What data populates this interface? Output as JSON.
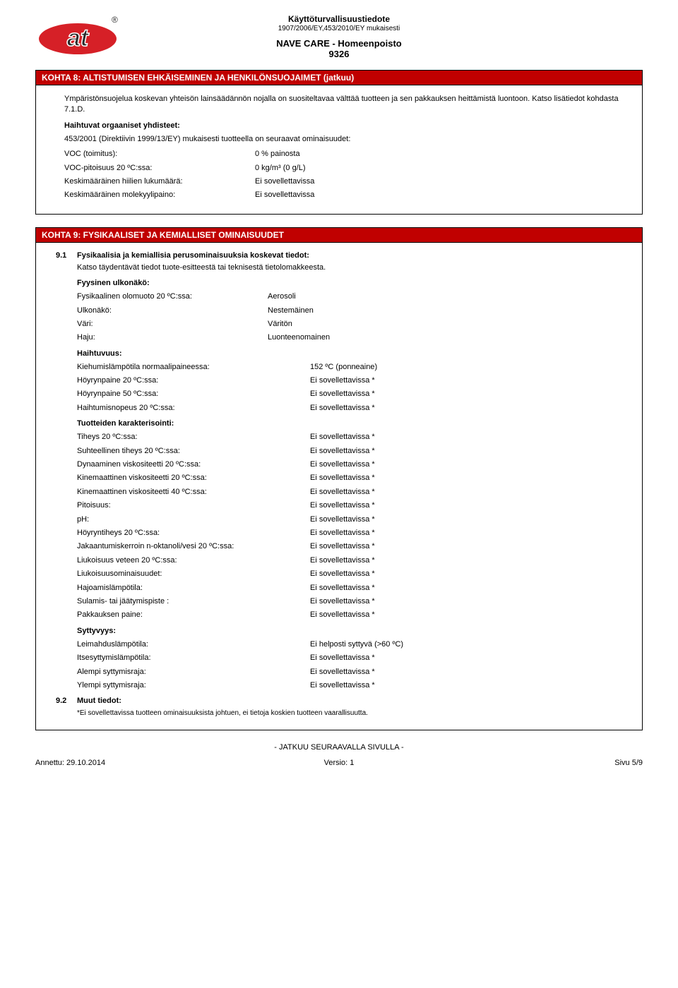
{
  "header": {
    "doc_title": "Käyttöturvallisuustiedote",
    "regulation": "1907/2006/EY,453/2010/EY mukaisesti",
    "product_name": "NAVE CARE - Homeenpoisto",
    "product_code": "9326"
  },
  "section8": {
    "title": "KOHTA 8: ALTISTUMISEN EHKÄISEMINEN JA HENKILÖNSUOJAIMET (jatkuu)",
    "para1": "Ympäristönsuojelua koskevan yhteisön lainsäädännön nojalla on suositeltavaa välttää tuotteen ja sen pakkauksen heittämistä luontoon. Katso lisätiedot kohdasta 7.1.D.",
    "sub_heading": "Haihtuvat orgaaniset yhdisteet:",
    "para2": "453/2001 (Direktiivin 1999/13/EY) mukaisesti tuotteella on seuraavat ominaisuudet:",
    "rows": [
      {
        "k": "VOC (toimitus):",
        "v": "0 % painosta"
      },
      {
        "k": "VOC-pitoisuus 20 ºC:ssa:",
        "v": "0 kg/m³  (0 g/L)"
      },
      {
        "k": "Keskimääräinen hiilien lukumäärä:",
        "v": "Ei sovellettavissa"
      },
      {
        "k": "Keskimääräinen molekyylipaino:",
        "v": "Ei sovellettavissa"
      }
    ]
  },
  "section9": {
    "title": "KOHTA 9: FYSIKAALISET JA KEMIALLISET OMINAISUUDET",
    "item91_num": "9.1",
    "item91_title": "Fysikaalisia ja kemiallisia perusominaisuuksia koskevat tiedot:",
    "item91_para": "Katso täydentävät tiedot tuote-esitteestä tai teknisestä tietolomakkeesta.",
    "appearance_heading": "Fyysinen ulkonäkö:",
    "appearance_rows": [
      {
        "k": "Fysikaalinen olomuoto 20 ºC:ssa:",
        "v": "Aerosoli"
      },
      {
        "k": "Ulkonäkö:",
        "v": "Nestemäinen"
      },
      {
        "k": "Väri:",
        "v": "Väritön"
      },
      {
        "k": "Haju:",
        "v": "Luonteenomainen"
      }
    ],
    "volatility_heading": "Haihtuvuus:",
    "volatility_rows": [
      {
        "k": "Kiehumislämpötila normaalipaineessa:",
        "v": "152 ºC (ponneaine)"
      },
      {
        "k": "Höyrynpaine 20 ºC:ssa:",
        "v": "Ei sovellettavissa *"
      },
      {
        "k": "Höyrynpaine 50 ºC:ssa:",
        "v": "Ei sovellettavissa *"
      },
      {
        "k": "Haihtumisnopeus 20 ºC:ssa:",
        "v": "Ei sovellettavissa *"
      }
    ],
    "charact_heading": "Tuotteiden karakterisointi:",
    "charact_rows": [
      {
        "k": "Tiheys 20 ºC:ssa:",
        "v": "Ei sovellettavissa *"
      },
      {
        "k": "Suhteellinen tiheys 20 ºC:ssa:",
        "v": "Ei sovellettavissa *"
      },
      {
        "k": "Dynaaminen viskositeetti 20 ºC:ssa:",
        "v": "Ei sovellettavissa *"
      },
      {
        "k": "Kinemaattinen viskositeetti 20 ºC:ssa:",
        "v": "Ei sovellettavissa *"
      },
      {
        "k": "Kinemaattinen viskositeetti 40 ºC:ssa:",
        "v": "Ei sovellettavissa *"
      },
      {
        "k": "Pitoisuus:",
        "v": "Ei sovellettavissa *"
      },
      {
        "k": "pH:",
        "v": "Ei sovellettavissa *"
      },
      {
        "k": "Höyryntiheys 20 ºC:ssa:",
        "v": "Ei sovellettavissa *"
      },
      {
        "k": "Jakaantumiskerroin n-oktanoli/vesi 20 ºC:ssa:",
        "v": "Ei sovellettavissa *"
      },
      {
        "k": "Liukoisuus veteen 20 ºC:ssa:",
        "v": "Ei sovellettavissa *"
      },
      {
        "k": "Liukoisuusominaisuudet:",
        "v": "Ei sovellettavissa *"
      },
      {
        "k": "Hajoamislämpötila:",
        "v": "Ei sovellettavissa *"
      },
      {
        "k": "Sulamis- tai jäätymispiste :",
        "v": "Ei sovellettavissa *"
      },
      {
        "k": "Pakkauksen paine:",
        "v": "Ei sovellettavissa *"
      }
    ],
    "flamm_heading": "Syttyvyys:",
    "flamm_rows": [
      {
        "k": "Leimahduslämpötila:",
        "v": "Ei helposti syttyvä (>60 ºC)"
      },
      {
        "k": "Itsesyttymislämpötila:",
        "v": "Ei sovellettavissa *"
      },
      {
        "k": "Alempi syttymisraja:",
        "v": "Ei sovellettavissa *"
      },
      {
        "k": "Ylempi syttymisraja:",
        "v": "Ei sovellettavissa *"
      }
    ],
    "item92_num": "9.2",
    "item92_title": "Muut tiedot:",
    "footnote": "*Ei sovellettavissa tuotteen ominaisuuksista johtuen, ei tietoja koskien tuotteen vaarallisuutta."
  },
  "continue_text": "- JATKUU SEURAAVALLA SIVULLA -",
  "footer": {
    "left": "Annettu: 29.10.2014",
    "center": "Versio: 1",
    "right": "Sivu 5/9"
  },
  "colors": {
    "header_bg": "#c00000",
    "header_text": "#ffffff",
    "border": "#000000",
    "logo_red": "#d62027",
    "logo_black": "#2b2b2b"
  }
}
